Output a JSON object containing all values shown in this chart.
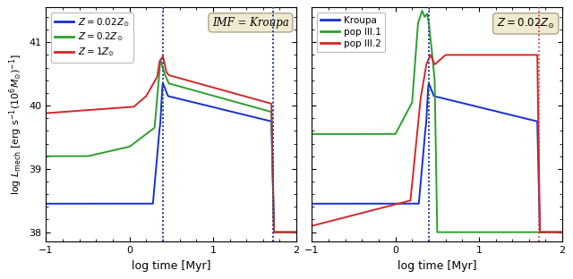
{
  "fig_width": 6.4,
  "fig_height": 3.12,
  "dpi": 100,
  "box_color": "#f0ead0",
  "xlim": [
    -1,
    2
  ],
  "ylim": [
    37.85,
    41.55
  ],
  "yticks": [
    38,
    39,
    40,
    41
  ],
  "xticks": [
    -1,
    0,
    1,
    2
  ],
  "xlabel": "log time [Myr]",
  "ylabel": "log $L_{\\mathrm{mech}}$ [erg s$^{-1}$(10$^{6}M_{\\odot}$)$^{-1}$]",
  "panel1_label": "IMF = Kroupa",
  "panel2_label": "$Z = 0.02Z_{\\odot}$",
  "c_blue": "#1530d4",
  "c_green": "#2ca02c",
  "c_red": "#d62728",
  "panel1_legend": [
    "$Z = 0.02Z_{\\odot}$",
    "$Z = 0.2Z_{\\odot}$",
    "$Z = 1Z_{\\odot}$"
  ],
  "panel2_legend": [
    "Kroupa",
    "pop III.1",
    "pop III.2"
  ],
  "p1_vline1": 0.4,
  "p1_vline2": 1.72,
  "p2_vline1": 0.4,
  "p2_vline2": 1.72
}
